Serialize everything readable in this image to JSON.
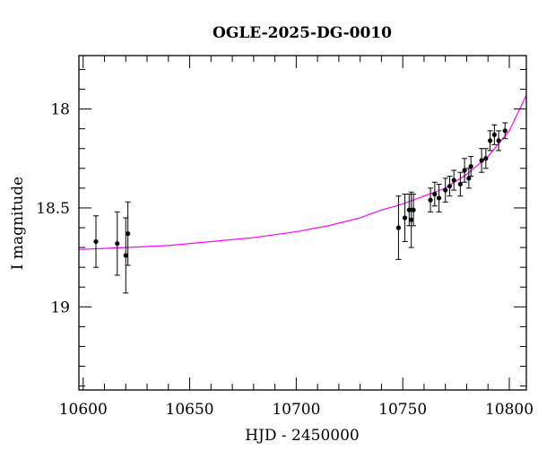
{
  "chart_data": {
    "type": "scatter",
    "title": "OGLE-2025-DG-0010",
    "xlabel": "HJD - 2450000",
    "ylabel": "I magnitude",
    "xlim": [
      10598,
      10808
    ],
    "ylim": [
      19.42,
      17.73
    ],
    "y_inverted": true,
    "x_ticks": [
      10600,
      10650,
      10700,
      10750,
      10800
    ],
    "y_ticks": [
      18,
      18.5,
      19
    ],
    "grid": false,
    "colors": {
      "points": "#000000",
      "model": "#ff00ff"
    },
    "series": [
      {
        "type": "errorbar-points",
        "points": [
          {
            "x": 10606,
            "y": 18.67,
            "err": 0.13
          },
          {
            "x": 10616,
            "y": 18.68,
            "err": 0.16
          },
          {
            "x": 10620,
            "y": 18.74,
            "err": 0.19
          },
          {
            "x": 10621,
            "y": 18.63,
            "err": 0.16
          },
          {
            "x": 10748,
            "y": 18.6,
            "err": 0.16
          },
          {
            "x": 10751,
            "y": 18.55,
            "err": 0.12
          },
          {
            "x": 10753,
            "y": 18.51,
            "err": 0.08
          },
          {
            "x": 10754,
            "y": 18.56,
            "err": 0.14
          },
          {
            "x": 10755,
            "y": 18.51,
            "err": 0.08
          },
          {
            "x": 10763,
            "y": 18.46,
            "err": 0.06
          },
          {
            "x": 10765,
            "y": 18.43,
            "err": 0.06
          },
          {
            "x": 10767,
            "y": 18.45,
            "err": 0.07
          },
          {
            "x": 10770,
            "y": 18.41,
            "err": 0.06
          },
          {
            "x": 10772,
            "y": 18.39,
            "err": 0.05
          },
          {
            "x": 10774,
            "y": 18.36,
            "err": 0.05
          },
          {
            "x": 10777,
            "y": 18.38,
            "err": 0.06
          },
          {
            "x": 10779,
            "y": 18.31,
            "err": 0.06
          },
          {
            "x": 10781,
            "y": 18.35,
            "err": 0.05
          },
          {
            "x": 10782,
            "y": 18.29,
            "err": 0.05
          },
          {
            "x": 10787,
            "y": 18.26,
            "err": 0.06
          },
          {
            "x": 10789,
            "y": 18.25,
            "err": 0.05
          },
          {
            "x": 10791,
            "y": 18.16,
            "err": 0.05
          },
          {
            "x": 10793,
            "y": 18.13,
            "err": 0.05
          },
          {
            "x": 10795,
            "y": 18.16,
            "err": 0.05
          },
          {
            "x": 10798,
            "y": 18.11,
            "err": 0.04
          }
        ]
      },
      {
        "type": "model-curve",
        "x": [
          10598,
          10620,
          10640,
          10660,
          10680,
          10700,
          10715,
          10730,
          10740,
          10750,
          10760,
          10770,
          10780,
          10790,
          10800,
          10808
        ],
        "y": [
          18.71,
          18.7,
          18.69,
          18.67,
          18.65,
          18.62,
          18.59,
          18.55,
          18.51,
          18.48,
          18.44,
          18.4,
          18.33,
          18.24,
          18.11,
          17.93
        ]
      }
    ]
  }
}
